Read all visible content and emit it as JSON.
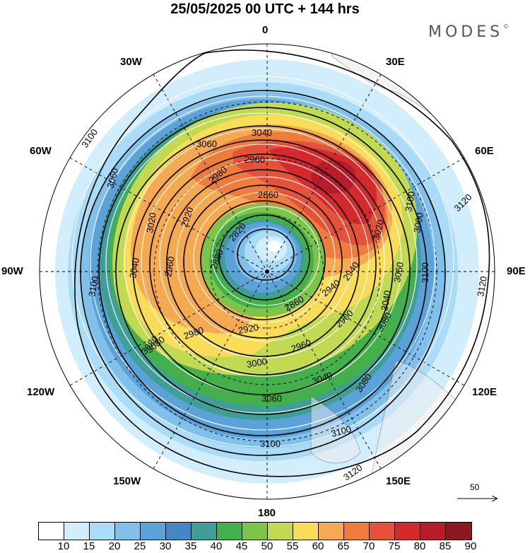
{
  "title": "25/05/2025  00 UTC  + 144 hrs",
  "brand": "MODES",
  "brand_mark": "©",
  "longitude_labels": {
    "lon_0": "0",
    "lon_30e": "30E",
    "lon_60e": "60E",
    "lon_90e": "90E",
    "lon_120e": "120E",
    "lon_150e": "150E",
    "lon_180": "180",
    "lon_150w": "150W",
    "lon_120w": "120W",
    "lon_90w": "90W",
    "lon_60w": "60W",
    "lon_30w": "30W"
  },
  "contour_labels": [
    "3040",
    "3060",
    "3100",
    "3060",
    "2980",
    "2960",
    "2860",
    "3020",
    "2920",
    "2820",
    "2880",
    "2940",
    "3020",
    "3100",
    "3120",
    "3120",
    "3080",
    "3040",
    "3100",
    "2980",
    "2960",
    "2920",
    "2940",
    "2860",
    "3000",
    "2960",
    "2900",
    "3040",
    "3080",
    "3060",
    "3100",
    "3100",
    "3120",
    "3100",
    "3080",
    "3000",
    "3060",
    "3040",
    "3080"
  ],
  "reference_vector": {
    "label": "50"
  },
  "colorbar": {
    "ticks": [
      "10",
      "15",
      "20",
      "25",
      "30",
      "35",
      "40",
      "45",
      "50",
      "55",
      "60",
      "65",
      "70",
      "75",
      "80",
      "85",
      "90"
    ],
    "colors": [
      "#ffffff",
      "#d2eefc",
      "#aadcf8",
      "#80c0ea",
      "#5aa2d8",
      "#4487c4",
      "#3f9e98",
      "#44b04c",
      "#7cc44a",
      "#c2da52",
      "#f8dc5a",
      "#f5aa52",
      "#ee7c3c",
      "#e4523a",
      "#d42a2e",
      "#b81c28",
      "#8e1820"
    ]
  }
}
